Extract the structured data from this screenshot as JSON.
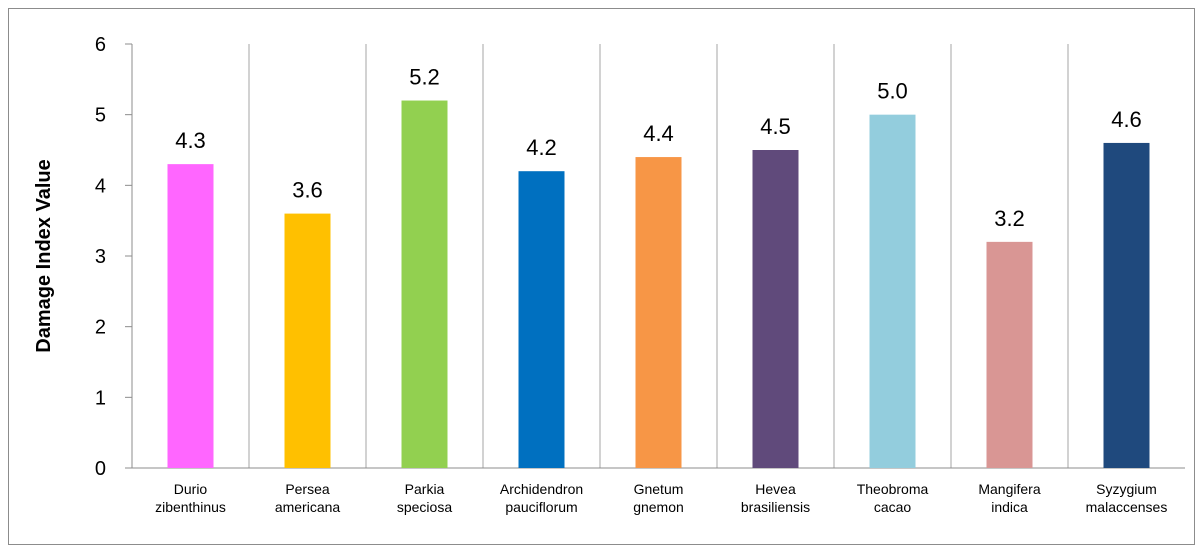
{
  "chart_data": {
    "type": "bar",
    "title": "",
    "xlabel": "",
    "ylabel": "Damage Index Value",
    "ylim": [
      0,
      6
    ],
    "yticks": [
      "0",
      "1",
      "2",
      "3",
      "4",
      "5",
      "6"
    ],
    "grid": "vertical separators between categories",
    "legend": "none",
    "categories": [
      [
        "Durio",
        "zibenthinus"
      ],
      [
        "Persea",
        "americana"
      ],
      [
        "Parkia",
        "speciosa"
      ],
      [
        "Archidendron",
        "pauciflorum"
      ],
      [
        "Gnetum",
        "gnemon"
      ],
      [
        "Hevea",
        "brasiliensis"
      ],
      [
        "Theobroma",
        "cacao"
      ],
      [
        "Mangifera",
        "indica"
      ],
      [
        "Syzygium",
        "malaccenses"
      ]
    ],
    "values": [
      4.3,
      3.6,
      5.2,
      4.2,
      4.4,
      4.5,
      5.0,
      3.2,
      4.6
    ],
    "value_labels": [
      "4.3",
      "3.6",
      "5.2",
      "4.2",
      "4.4",
      "4.5",
      "5.0",
      "3.2",
      "4.6"
    ],
    "colors": [
      "#FF66FF",
      "#FFC000",
      "#92D050",
      "#0070C0",
      "#F79646",
      "#604A7B",
      "#93CDDD",
      "#D99694",
      "#1F497D"
    ]
  }
}
